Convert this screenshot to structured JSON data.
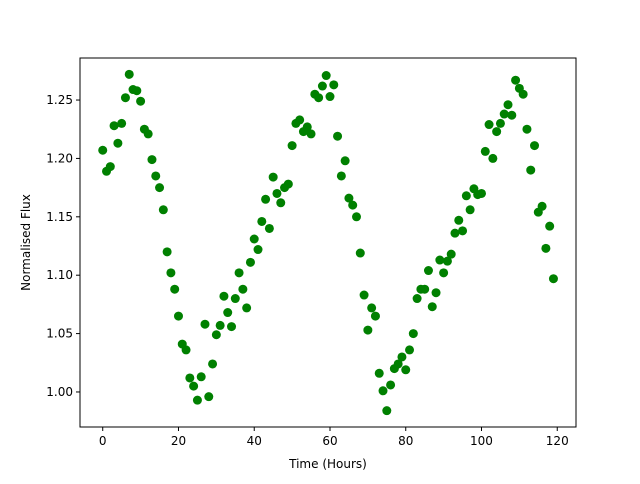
{
  "chart_data": {
    "type": "scatter",
    "xlabel": "Time (Hours)",
    "ylabel": "Normalised Flux",
    "xlim": [
      -6,
      124.95
    ],
    "ylim": [
      0.97,
      1.286
    ],
    "xticks": [
      0,
      20,
      40,
      60,
      80,
      100,
      120
    ],
    "xtick_labels": [
      "0",
      "20",
      "40",
      "60",
      "80",
      "100",
      "120"
    ],
    "yticks": [
      1.0,
      1.05,
      1.1,
      1.15,
      1.2,
      1.25
    ],
    "ytick_labels": [
      "1.00",
      "1.05",
      "1.10",
      "1.15",
      "1.20",
      "1.25"
    ],
    "grid": false,
    "marker_color": "#008000",
    "series": [
      {
        "x": [
          0,
          1,
          2,
          3,
          4,
          5,
          6,
          7,
          8,
          9,
          10,
          11,
          12,
          13,
          14,
          15,
          16,
          17,
          18,
          19,
          20,
          21,
          22,
          23,
          24,
          25,
          26,
          27,
          28,
          29,
          30,
          31,
          32,
          33,
          34,
          35,
          36,
          37,
          38,
          39,
          40,
          41,
          42,
          43,
          44,
          45,
          46,
          47,
          48,
          49,
          50,
          51,
          52,
          53,
          54,
          55,
          56,
          57,
          58,
          59,
          60,
          61,
          62,
          63,
          64,
          65,
          66,
          67,
          68,
          69,
          70,
          71,
          72,
          73,
          74,
          75,
          76,
          77,
          78,
          79,
          80,
          81,
          82,
          83,
          84,
          85,
          86,
          87,
          88,
          89,
          90,
          91,
          92,
          93,
          94,
          95,
          96,
          97,
          98,
          99,
          100,
          101,
          102,
          103,
          104,
          105,
          106,
          107,
          108,
          109,
          110,
          111,
          112,
          113,
          114,
          115,
          116,
          117,
          118,
          119
        ],
        "y": [
          1.207,
          1.189,
          1.193,
          1.228,
          1.213,
          1.23,
          1.252,
          1.272,
          1.259,
          1.258,
          1.249,
          1.225,
          1.221,
          1.199,
          1.185,
          1.175,
          1.156,
          1.12,
          1.102,
          1.088,
          1.065,
          1.041,
          1.036,
          1.012,
          1.005,
          0.993,
          1.013,
          1.058,
          0.996,
          1.024,
          1.049,
          1.057,
          1.082,
          1.068,
          1.056,
          1.08,
          1.102,
          1.088,
          1.072,
          1.111,
          1.131,
          1.122,
          1.146,
          1.165,
          1.14,
          1.184,
          1.17,
          1.162,
          1.175,
          1.178,
          1.211,
          1.23,
          1.233,
          1.223,
          1.227,
          1.221,
          1.255,
          1.252,
          1.262,
          1.271,
          1.253,
          1.263,
          1.219,
          1.185,
          1.198,
          1.166,
          1.16,
          1.15,
          1.119,
          1.083,
          1.053,
          1.072,
          1.065,
          1.016,
          1.001,
          0.984,
          1.006,
          1.02,
          1.024,
          1.03,
          1.019,
          1.036,
          1.05,
          1.08,
          1.088,
          1.088,
          1.104,
          1.073,
          1.085,
          1.113,
          1.102,
          1.112,
          1.118,
          1.136,
          1.147,
          1.138,
          1.168,
          1.156,
          1.174,
          1.169,
          1.17,
          1.206,
          1.229,
          1.2,
          1.223,
          1.23,
          1.238,
          1.246,
          1.237,
          1.267,
          1.26,
          1.255,
          1.225,
          1.19,
          1.211,
          1.154,
          1.159,
          1.123,
          1.142,
          1.097
        ]
      }
    ]
  }
}
